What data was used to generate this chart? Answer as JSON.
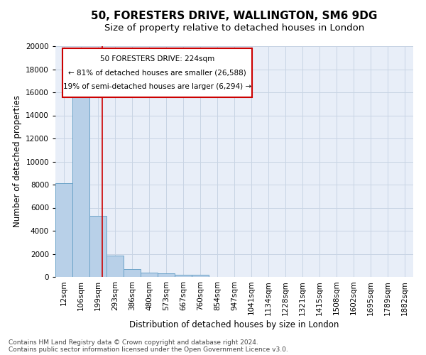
{
  "title": "50, FORESTERS DRIVE, WALLINGTON, SM6 9DG",
  "subtitle": "Size of property relative to detached houses in London",
  "xlabel": "Distribution of detached houses by size in London",
  "ylabel": "Number of detached properties",
  "bar_color": "#b8d0e8",
  "bar_edge_color": "#6ba3c8",
  "background_color": "#e8eef8",
  "grid_color": "#c8d4e4",
  "annotation_line_color": "#cc0000",
  "annotation_box_color": "#cc0000",
  "annotation_line1": "50 FORESTERS DRIVE: 224sqm",
  "annotation_line2": "← 81% of detached houses are smaller (26,588)",
  "annotation_line3": "19% of semi-detached houses are larger (6,294) →",
  "footer_text": "Contains HM Land Registry data © Crown copyright and database right 2024.\nContains public sector information licensed under the Open Government Licence v3.0.",
  "categories": [
    "12sqm",
    "106sqm",
    "199sqm",
    "293sqm",
    "386sqm",
    "480sqm",
    "573sqm",
    "667sqm",
    "760sqm",
    "854sqm",
    "947sqm",
    "1041sqm",
    "1134sqm",
    "1228sqm",
    "1321sqm",
    "1415sqm",
    "1508sqm",
    "1602sqm",
    "1695sqm",
    "1789sqm",
    "1882sqm"
  ],
  "values": [
    8100,
    16550,
    5300,
    1850,
    700,
    350,
    280,
    200,
    170,
    0,
    0,
    0,
    0,
    0,
    0,
    0,
    0,
    0,
    0,
    0,
    0
  ],
  "ylim": [
    0,
    20000
  ],
  "yticks": [
    0,
    2000,
    4000,
    6000,
    8000,
    10000,
    12000,
    14000,
    16000,
    18000,
    20000
  ],
  "title_fontsize": 11,
  "subtitle_fontsize": 9.5,
  "axis_label_fontsize": 8.5,
  "tick_fontsize": 7.5,
  "footer_fontsize": 6.5
}
